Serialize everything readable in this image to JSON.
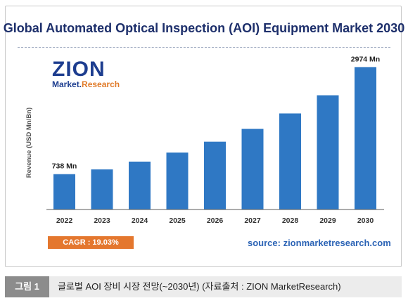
{
  "chart_data": {
    "type": "bar",
    "title": "Global Automated Optical Inspection (AOI) Equipment Market 2030",
    "ylabel": "Revenue (USD Mn/Bn)",
    "categories": [
      "2022",
      "2023",
      "2024",
      "2025",
      "2026",
      "2027",
      "2028",
      "2029",
      "2030"
    ],
    "values": [
      738,
      838,
      1000,
      1190,
      1415,
      1685,
      2005,
      2385,
      2974
    ],
    "data_labels": {
      "first": "738 Mn",
      "last": "2974 Mn"
    },
    "ylim": [
      0,
      3200
    ],
    "grid": false,
    "bar_color": "#2f78c4",
    "axis_color": "#5a5a5a"
  },
  "logo": {
    "main": "ZION",
    "sub_prefix": "Market.",
    "sub_suffix": "Research"
  },
  "cagr": "CAGR : 19.03%",
  "source": "source: zionmarketresearch.com",
  "figure": {
    "label": "그림 1",
    "caption": "글로벌 AOI 장비 시장 전망(~2030년) (자료출처 : ZION MarketResearch)"
  }
}
